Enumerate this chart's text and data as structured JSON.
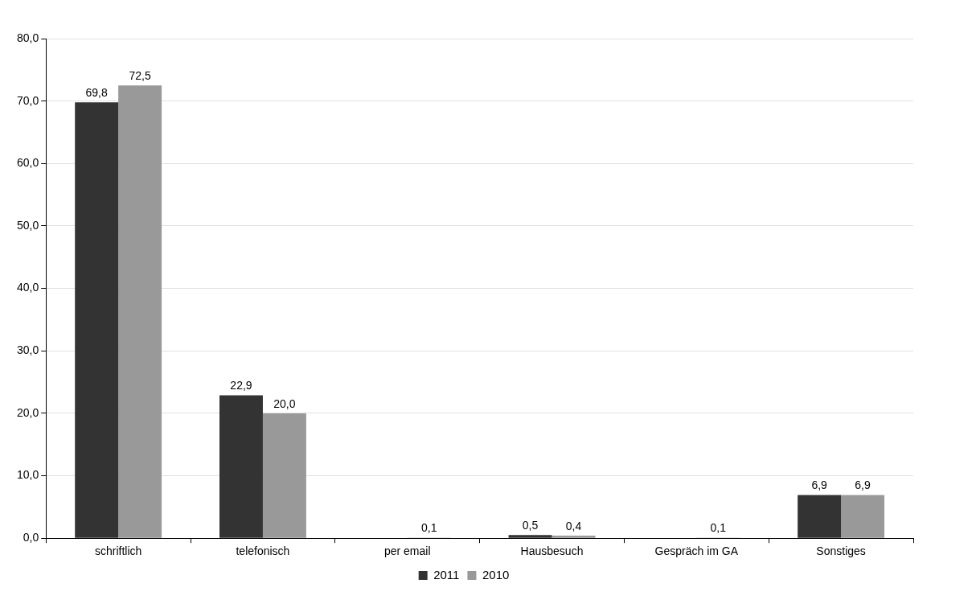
{
  "chart_data": {
    "type": "bar",
    "categories": [
      "schriftlich",
      "telefonisch",
      "per email",
      "Hausbesuch",
      "Gespräch im GA",
      "Sonstiges"
    ],
    "series": [
      {
        "name": "2011",
        "color": "#333333",
        "values": [
          69.8,
          22.9,
          null,
          0.5,
          null,
          6.9
        ],
        "value_labels": [
          "69,8",
          "22,9",
          null,
          "0,5",
          null,
          "6,9"
        ]
      },
      {
        "name": "2010",
        "color": "#999999",
        "values": [
          72.5,
          20.0,
          0.1,
          0.4,
          0.1,
          6.9
        ],
        "value_labels": [
          "72,5",
          "20,0",
          "0,1",
          "0,4",
          "0,1",
          "6,9"
        ]
      }
    ],
    "ylim": [
      0,
      80
    ],
    "yticks": [
      {
        "value": 0,
        "label": "0,0"
      },
      {
        "value": 10,
        "label": "10,0"
      },
      {
        "value": 20,
        "label": "20,0"
      },
      {
        "value": 30,
        "label": "30,0"
      },
      {
        "value": 40,
        "label": "40,0"
      },
      {
        "value": 50,
        "label": "50,0"
      },
      {
        "value": 60,
        "label": "60,0"
      },
      {
        "value": 70,
        "label": "70,0"
      },
      {
        "value": 80,
        "label": "80,0"
      }
    ],
    "grid": "y",
    "legend": "bottom"
  }
}
